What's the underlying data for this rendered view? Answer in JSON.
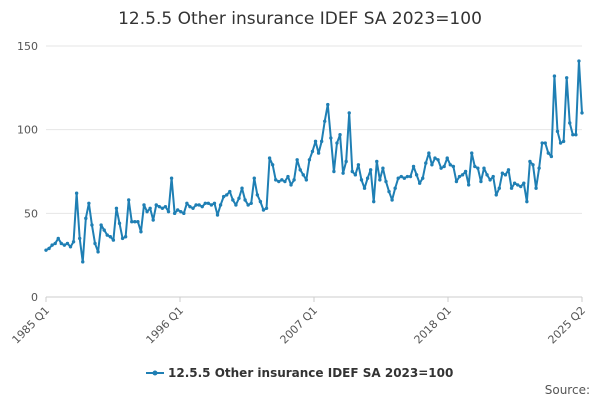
{
  "chart_data": {
    "type": "line",
    "title": "12.5.5 Other insurance IDEF SA 2023=100",
    "xlabel": "",
    "ylabel": "",
    "ylim": [
      0,
      150
    ],
    "y_ticks": [
      0,
      50,
      100,
      150
    ],
    "x_tick_labels": [
      "1985 Q1",
      "1996 Q1",
      "2007 Q1",
      "2018 Q1",
      "2025 Q2"
    ],
    "grid": true,
    "legend_position": "bottom",
    "series": [
      {
        "name": "12.5.5 Other insurance IDEF SA 2023=100",
        "color": "#1f7fb4",
        "values": [
          28,
          29,
          31,
          32,
          35,
          32,
          31,
          32,
          30,
          33,
          62,
          35,
          21,
          47,
          56,
          43,
          32,
          27,
          43,
          40,
          37,
          36,
          34,
          53,
          44,
          35,
          36,
          58,
          45,
          45,
          45,
          39,
          55,
          51,
          53,
          46,
          55,
          54,
          53,
          54,
          51,
          71,
          50,
          52,
          51,
          50,
          56,
          54,
          53,
          55,
          55,
          54,
          56,
          56,
          55,
          56,
          49,
          55,
          60,
          61,
          63,
          58,
          55,
          59,
          65,
          58,
          55,
          56,
          71,
          61,
          57,
          52,
          53,
          83,
          79,
          70,
          69,
          70,
          69,
          72,
          67,
          70,
          82,
          76,
          73,
          70,
          82,
          87,
          93,
          86,
          93,
          105,
          115,
          95,
          75,
          92,
          97,
          74,
          81,
          110,
          75,
          73,
          79,
          70,
          65,
          71,
          76,
          57,
          81,
          70,
          77,
          69,
          63,
          58,
          65,
          71,
          72,
          71,
          72,
          72,
          78,
          73,
          68,
          71,
          80,
          86,
          79,
          83,
          82,
          77,
          78,
          83,
          79,
          78,
          69,
          72,
          73,
          75,
          67,
          86,
          78,
          77,
          69,
          77,
          73,
          70,
          72,
          61,
          65,
          74,
          73,
          76,
          65,
          68,
          67,
          66,
          68,
          57,
          81,
          79,
          65,
          77,
          92,
          92,
          86,
          84,
          132,
          99,
          92,
          93,
          131,
          104,
          97,
          97,
          141,
          110
        ]
      }
    ]
  },
  "source_label": "Source:"
}
